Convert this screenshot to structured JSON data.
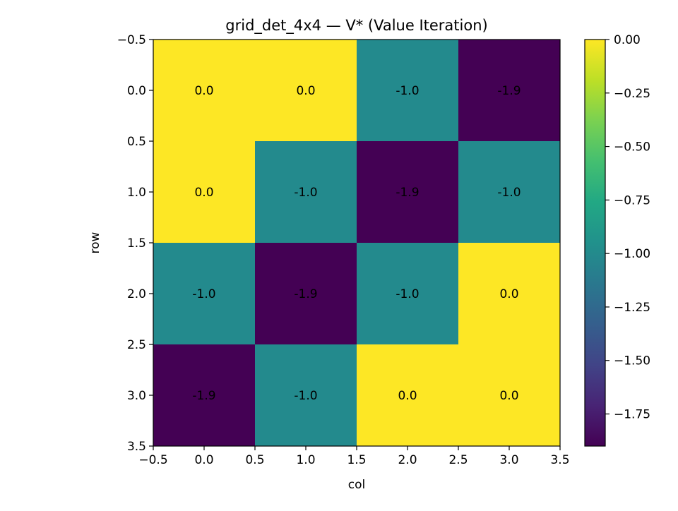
{
  "chart_data": {
    "type": "heatmap",
    "title": "grid_det_4x4 — V* (Value Iteration)",
    "xlabel": "col",
    "ylabel": "row",
    "rows": 4,
    "cols": 4,
    "values": [
      [
        0.0,
        0.0,
        -1.0,
        -1.9
      ],
      [
        0.0,
        -1.0,
        -1.9,
        -1.0
      ],
      [
        -1.0,
        -1.9,
        -1.0,
        0.0
      ],
      [
        -1.9,
        -1.0,
        0.0,
        0.0
      ]
    ],
    "cell_labels": [
      [
        "0.0",
        "0.0",
        "-1.0",
        "-1.9"
      ],
      [
        "0.0",
        "-1.0",
        "-1.9",
        "-1.0"
      ],
      [
        "-1.0",
        "-1.9",
        "-1.0",
        "0.0"
      ],
      [
        "-1.9",
        "-1.0",
        "0.0",
        "0.0"
      ]
    ],
    "xlim": [
      -0.5,
      3.5
    ],
    "ylim": [
      3.5,
      -0.5
    ],
    "xticks": [
      -0.5,
      0.0,
      0.5,
      1.0,
      1.5,
      2.0,
      2.5,
      3.0,
      3.5
    ],
    "xtick_labels": [
      "−0.5",
      "0.0",
      "0.5",
      "1.0",
      "1.5",
      "2.0",
      "2.5",
      "3.0",
      "3.5"
    ],
    "yticks": [
      -0.5,
      0.0,
      0.5,
      1.0,
      1.5,
      2.0,
      2.5,
      3.0,
      3.5
    ],
    "ytick_labels": [
      "−0.5",
      "0.0",
      "0.5",
      "1.0",
      "1.5",
      "2.0",
      "2.5",
      "3.0",
      "3.5"
    ],
    "colormap": "viridis",
    "colorbar": {
      "vmin": -1.9,
      "vmax": 0.0,
      "ticks": [
        0.0,
        -0.25,
        -0.5,
        -0.75,
        -1.0,
        -1.25,
        -1.5,
        -1.75
      ],
      "tick_labels": [
        "0.00",
        "−0.25",
        "−0.50",
        "−0.75",
        "−1.00",
        "−1.25",
        "−1.50",
        "−1.75"
      ]
    },
    "grid": false
  }
}
